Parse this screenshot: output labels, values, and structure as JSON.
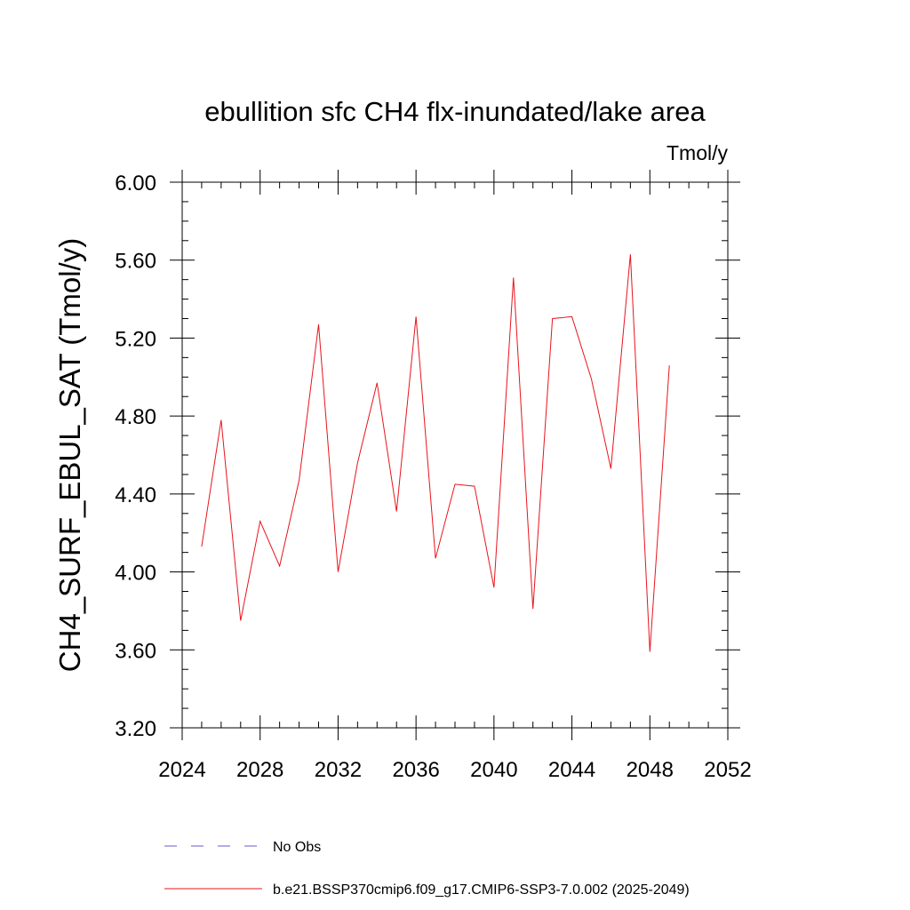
{
  "chart_data": {
    "type": "line",
    "title": "ebullition sfc CH4 flx-inundated/lake area",
    "units": "Tmol/y",
    "xlabel": "",
    "ylabel": "CH4_SURF_EBUL_SAT  (Tmol/y)",
    "xlim": [
      2024,
      2052
    ],
    "ylim": [
      3.2,
      6.0
    ],
    "x_ticks": [
      "2024",
      "2028",
      "2032",
      "2036",
      "2040",
      "2044",
      "2048",
      "2052"
    ],
    "y_ticks": [
      "3.20",
      "3.60",
      "4.00",
      "4.40",
      "4.80",
      "5.20",
      "5.60",
      "6.00"
    ],
    "grid": false,
    "legend_position": "bottom",
    "series": [
      {
        "name": "b.e21.BSSP370cmip6.f09_g17.CMIP6-SSP3-7.0.002 (2025-2049)",
        "color": "#e8141c",
        "style": "solid",
        "x": [
          2025,
          2026,
          2027,
          2028,
          2029,
          2030,
          2031,
          2032,
          2033,
          2034,
          2035,
          2036,
          2037,
          2038,
          2039,
          2040,
          2041,
          2042,
          2043,
          2044,
          2045,
          2046,
          2047,
          2048,
          2049
        ],
        "values": [
          4.13,
          4.78,
          3.75,
          4.26,
          4.03,
          4.47,
          5.27,
          4.0,
          4.56,
          4.97,
          4.31,
          5.31,
          4.07,
          4.45,
          4.44,
          3.92,
          5.51,
          3.81,
          5.3,
          5.31,
          4.99,
          4.53,
          5.63,
          3.59,
          5.06
        ]
      }
    ],
    "legend": [
      {
        "label": "No Obs",
        "color": "#6a5acd",
        "style": "dashed"
      },
      {
        "label": "b.e21.BSSP370cmip6.f09_g17.CMIP6-SSP3-7.0.002 (2025-2049)",
        "color": "#e8141c",
        "style": "solid"
      }
    ]
  }
}
